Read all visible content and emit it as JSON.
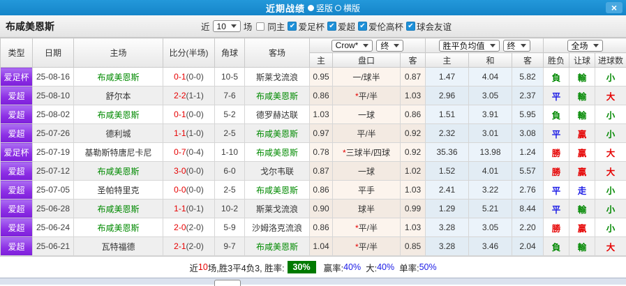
{
  "colors": {
    "titlebar_blue": "#1b8fd2",
    "type_column_purple": "#8c2ee4",
    "highlight_team_green": "#008a00",
    "score_red": "#e60000",
    "result_green": "#008800",
    "result_blue": "#1a1ae6",
    "result_red": "#e60000",
    "win_rate_badge_green": "#007a00"
  },
  "titlebar": {
    "title": "近期战绩",
    "vertical_label": "竖版",
    "horizontal_label": "横版",
    "close_icon": "×"
  },
  "toolbar": {
    "team_name": "布咸美恩斯",
    "recent_label": "近",
    "recent_count": "10",
    "matches_label": "场",
    "same_home_label": "同主",
    "league_filters": [
      "爱足杯",
      "爱超",
      "爱伦高杯",
      "球会友谊"
    ]
  },
  "table": {
    "headers": {
      "type": "类型",
      "date": "日期",
      "home": "主场",
      "score": "比分(半场)",
      "corner": "角球",
      "away": "客场",
      "sub": [
        "主",
        "盘口",
        "客",
        "主",
        "和",
        "客",
        "胜负",
        "让球",
        "进球数"
      ]
    },
    "controls": {
      "company": "Crow*",
      "company_state": "终",
      "avg": "胜平负均值",
      "avg_state": "终",
      "scope": "全场"
    },
    "rows": [
      {
        "league": "爱足杯",
        "date": "25-08-16",
        "home": "布咸美恩斯",
        "home_hl": true,
        "score": "0-1",
        "half": "(0-0)",
        "corner": "10-5",
        "away": "斯莱戈流浪",
        "away_hl": false,
        "odds_home": "0.95",
        "handicap": "一/球半",
        "handicap_star": false,
        "odds_away": "0.87",
        "avg_home": "1.47",
        "avg_draw": "4.04",
        "avg_away": "5.82",
        "result": "負",
        "result_color": "green",
        "handicap_result": "輸",
        "handicap_result_color": "green",
        "goals": "小",
        "goals_color": "green"
      },
      {
        "league": "爱超",
        "date": "25-08-10",
        "home": "舒尔本",
        "home_hl": false,
        "score": "2-2",
        "half": "(1-1)",
        "corner": "7-6",
        "away": "布咸美恩斯",
        "away_hl": true,
        "odds_home": "0.86",
        "handicap": "平/半",
        "handicap_star": true,
        "odds_away": "1.03",
        "avg_home": "2.96",
        "avg_draw": "3.05",
        "avg_away": "2.37",
        "result": "平",
        "result_color": "blue",
        "handicap_result": "輸",
        "handicap_result_color": "green",
        "goals": "大",
        "goals_color": "red"
      },
      {
        "league": "爱超",
        "date": "25-08-02",
        "home": "布咸美恩斯",
        "home_hl": true,
        "score": "0-1",
        "half": "(0-0)",
        "corner": "5-2",
        "away": "德罗赫达联",
        "away_hl": false,
        "odds_home": "1.03",
        "handicap": "一球",
        "handicap_star": false,
        "odds_away": "0.86",
        "avg_home": "1.51",
        "avg_draw": "3.91",
        "avg_away": "5.95",
        "result": "負",
        "result_color": "green",
        "handicap_result": "輸",
        "handicap_result_color": "green",
        "goals": "小",
        "goals_color": "green"
      },
      {
        "league": "爱超",
        "date": "25-07-26",
        "home": "德利城",
        "home_hl": false,
        "score": "1-1",
        "half": "(1-0)",
        "corner": "2-5",
        "away": "布咸美恩斯",
        "away_hl": true,
        "odds_home": "0.97",
        "handicap": "平/半",
        "handicap_star": false,
        "odds_away": "0.92",
        "avg_home": "2.32",
        "avg_draw": "3.01",
        "avg_away": "3.08",
        "result": "平",
        "result_color": "blue",
        "handicap_result": "贏",
        "handicap_result_color": "red",
        "goals": "小",
        "goals_color": "green"
      },
      {
        "league": "爱足杯",
        "date": "25-07-19",
        "home": "基勒斯特唐尼卡尼",
        "home_hl": false,
        "score": "0-7",
        "half": "(0-4)",
        "corner": "1-10",
        "away": "布咸美恩斯",
        "away_hl": true,
        "odds_home": "0.78",
        "handicap": "三球半/四球",
        "handicap_star": true,
        "odds_away": "0.92",
        "avg_home": "35.36",
        "avg_draw": "13.98",
        "avg_away": "1.24",
        "result": "勝",
        "result_color": "red",
        "handicap_result": "贏",
        "handicap_result_color": "red",
        "goals": "大",
        "goals_color": "red"
      },
      {
        "league": "爱超",
        "date": "25-07-12",
        "home": "布咸美恩斯",
        "home_hl": true,
        "score": "3-0",
        "half": "(0-0)",
        "corner": "6-0",
        "away": "戈尔韦联",
        "away_hl": false,
        "odds_home": "0.87",
        "handicap": "一球",
        "handicap_star": false,
        "odds_away": "1.02",
        "avg_home": "1.52",
        "avg_draw": "4.01",
        "avg_away": "5.57",
        "result": "勝",
        "result_color": "red",
        "handicap_result": "贏",
        "handicap_result_color": "red",
        "goals": "大",
        "goals_color": "red"
      },
      {
        "league": "爱超",
        "date": "25-07-05",
        "home": "圣帕特里克",
        "home_hl": false,
        "score": "0-0",
        "half": "(0-0)",
        "corner": "2-5",
        "away": "布咸美恩斯",
        "away_hl": true,
        "odds_home": "0.86",
        "handicap": "平手",
        "handicap_star": false,
        "odds_away": "1.03",
        "avg_home": "2.41",
        "avg_draw": "3.22",
        "avg_away": "2.76",
        "result": "平",
        "result_color": "blue",
        "handicap_result": "走",
        "handicap_result_color": "blue",
        "goals": "小",
        "goals_color": "green"
      },
      {
        "league": "爱超",
        "date": "25-06-28",
        "home": "布咸美恩斯",
        "home_hl": true,
        "score": "1-1",
        "half": "(0-1)",
        "corner": "10-2",
        "away": "斯莱戈流浪",
        "away_hl": false,
        "odds_home": "0.90",
        "handicap": "球半",
        "handicap_star": false,
        "odds_away": "0.99",
        "avg_home": "1.29",
        "avg_draw": "5.21",
        "avg_away": "8.44",
        "result": "平",
        "result_color": "blue",
        "handicap_result": "輸",
        "handicap_result_color": "green",
        "goals": "小",
        "goals_color": "green"
      },
      {
        "league": "爱超",
        "date": "25-06-24",
        "home": "布咸美恩斯",
        "home_hl": true,
        "score": "2-0",
        "half": "(2-0)",
        "corner": "5-9",
        "away": "沙姆洛克流浪",
        "away_hl": false,
        "odds_home": "0.86",
        "handicap": "平/半",
        "handicap_star": true,
        "odds_away": "1.03",
        "avg_home": "3.28",
        "avg_draw": "3.05",
        "avg_away": "2.20",
        "result": "勝",
        "result_color": "red",
        "handicap_result": "贏",
        "handicap_result_color": "red",
        "goals": "小",
        "goals_color": "green"
      },
      {
        "league": "爱超",
        "date": "25-06-21",
        "home": "瓦特福德",
        "home_hl": false,
        "score": "2-1",
        "half": "(2-0)",
        "corner": "9-7",
        "away": "布咸美恩斯",
        "away_hl": true,
        "odds_home": "1.04",
        "handicap": "平/半",
        "handicap_star": true,
        "odds_away": "0.85",
        "avg_home": "3.28",
        "avg_draw": "3.46",
        "avg_away": "2.04",
        "result": "負",
        "result_color": "green",
        "handicap_result": "輸",
        "handicap_result_color": "green",
        "goals": "大",
        "goals_color": "red"
      }
    ]
  },
  "summary": {
    "prefix": "近",
    "count": "10",
    "stats": "场,胜3平4负3, 胜率:",
    "win_rate": "30%",
    "win_label": "赢率:",
    "win_value": "40%",
    "big_label": "大:",
    "big_value": "40%",
    "single_label": "单率:",
    "single_value": "50%"
  }
}
